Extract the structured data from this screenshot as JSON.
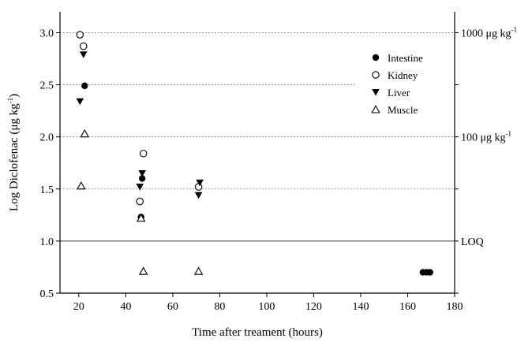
{
  "chart_data": {
    "type": "scatter",
    "title": "",
    "xlabel": "Time after treament (hours)",
    "ylabel": {
      "base": "Log Diclofenac (μg kg",
      "sup": "-1",
      "end": ")"
    },
    "xlim": [
      12,
      180
    ],
    "ylim": [
      0.5,
      3.2
    ],
    "xticks": [
      20,
      40,
      60,
      80,
      100,
      120,
      140,
      160,
      180
    ],
    "yticks": [
      "0.5",
      "1.0",
      "1.5",
      "2.0",
      "2.5",
      "3.0"
    ],
    "grid": "dotted horizontal reference lines",
    "legend_position": "top-right",
    "reference_lines": [
      {
        "y": 3.0,
        "style": "dotted",
        "label": {
          "base": "1000 μg kg",
          "sup": "-1"
        }
      },
      {
        "y": 2.5,
        "style": "dotted",
        "x_end": 138
      },
      {
        "y": 2.0,
        "style": "dotted",
        "label": {
          "base": "100 μg kg",
          "sup": "-1"
        }
      },
      {
        "y": 1.5,
        "style": "dotted"
      },
      {
        "y": 1.0,
        "style": "solid",
        "label": {
          "base": "LOQ",
          "sup": ""
        }
      }
    ],
    "series": [
      {
        "name": "Intestine",
        "marker": "filled-circle",
        "points": [
          [
            22.5,
            2.49
          ],
          [
            46.5,
            1.23
          ],
          [
            47,
            1.6
          ],
          [
            166.5,
            0.7
          ],
          [
            168,
            0.7
          ],
          [
            169.5,
            0.7
          ]
        ]
      },
      {
        "name": "Kidney",
        "marker": "open-circle",
        "points": [
          [
            20.5,
            2.98
          ],
          [
            22,
            2.87
          ],
          [
            46,
            1.38
          ],
          [
            47.5,
            1.84
          ],
          [
            71,
            1.52
          ]
        ]
      },
      {
        "name": "Liver",
        "marker": "filled-triangle-down",
        "points": [
          [
            20.5,
            2.34
          ],
          [
            22,
            2.79
          ],
          [
            46,
            1.52
          ],
          [
            47,
            1.65
          ],
          [
            71,
            1.44
          ],
          [
            71.5,
            1.56
          ]
        ]
      },
      {
        "name": "Muscle",
        "marker": "open-triangle-up",
        "points": [
          [
            21,
            1.53
          ],
          [
            22.5,
            2.03
          ],
          [
            46.5,
            1.22
          ],
          [
            47.5,
            0.71
          ],
          [
            71,
            0.71
          ]
        ]
      }
    ]
  }
}
